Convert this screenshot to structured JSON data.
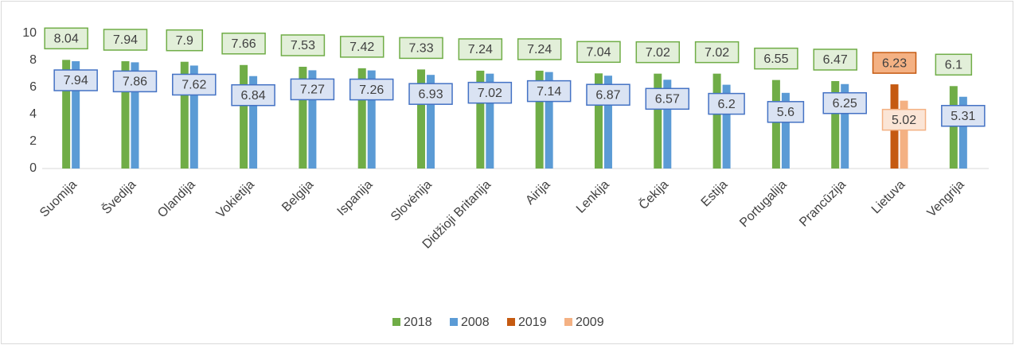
{
  "chart_data": {
    "type": "bar",
    "categories": [
      "Suomija",
      "Švedija",
      "Olandija",
      "Vokietija",
      "Belgija",
      "Ispanija",
      "Slovėnija",
      "Didžioji Britanija",
      "Airija",
      "Lenkija",
      "Čekija",
      "Estija",
      "Portugalija",
      "Prancūzija",
      "Lietuva",
      "Vengrija"
    ],
    "series": [
      {
        "name": "2018",
        "color": "#70ad47",
        "label_fill": "#e2efd9",
        "label_border": "#70ad47",
        "values": [
          8.04,
          7.94,
          7.9,
          7.66,
          7.53,
          7.42,
          7.33,
          7.24,
          7.24,
          7.04,
          7.02,
          7.02,
          6.55,
          6.47,
          null,
          6.1
        ]
      },
      {
        "name": "2008",
        "color": "#5b9bd5",
        "label_fill": "#dae3f3",
        "label_border": "#4472c4",
        "values": [
          7.94,
          7.86,
          7.62,
          6.84,
          7.27,
          7.26,
          6.93,
          7.02,
          7.14,
          6.87,
          6.57,
          6.2,
          5.6,
          6.25,
          null,
          5.31
        ]
      },
      {
        "name": "2019",
        "color": "#c55a11",
        "label_fill": "#f4b183",
        "label_border": "#c55a11",
        "values": [
          null,
          null,
          null,
          null,
          null,
          null,
          null,
          null,
          null,
          null,
          null,
          null,
          null,
          null,
          6.23,
          null
        ]
      },
      {
        "name": "2009",
        "color": "#f4b183",
        "label_fill": "#fbe5d6",
        "label_border": "#f4b183",
        "values": [
          null,
          null,
          null,
          null,
          null,
          null,
          null,
          null,
          null,
          null,
          null,
          null,
          null,
          null,
          5.02,
          null
        ]
      }
    ],
    "ylim": [
      0,
      10
    ],
    "yticks": [
      0,
      2,
      4,
      6,
      8,
      10
    ],
    "grid": false,
    "legend": "bottom"
  }
}
